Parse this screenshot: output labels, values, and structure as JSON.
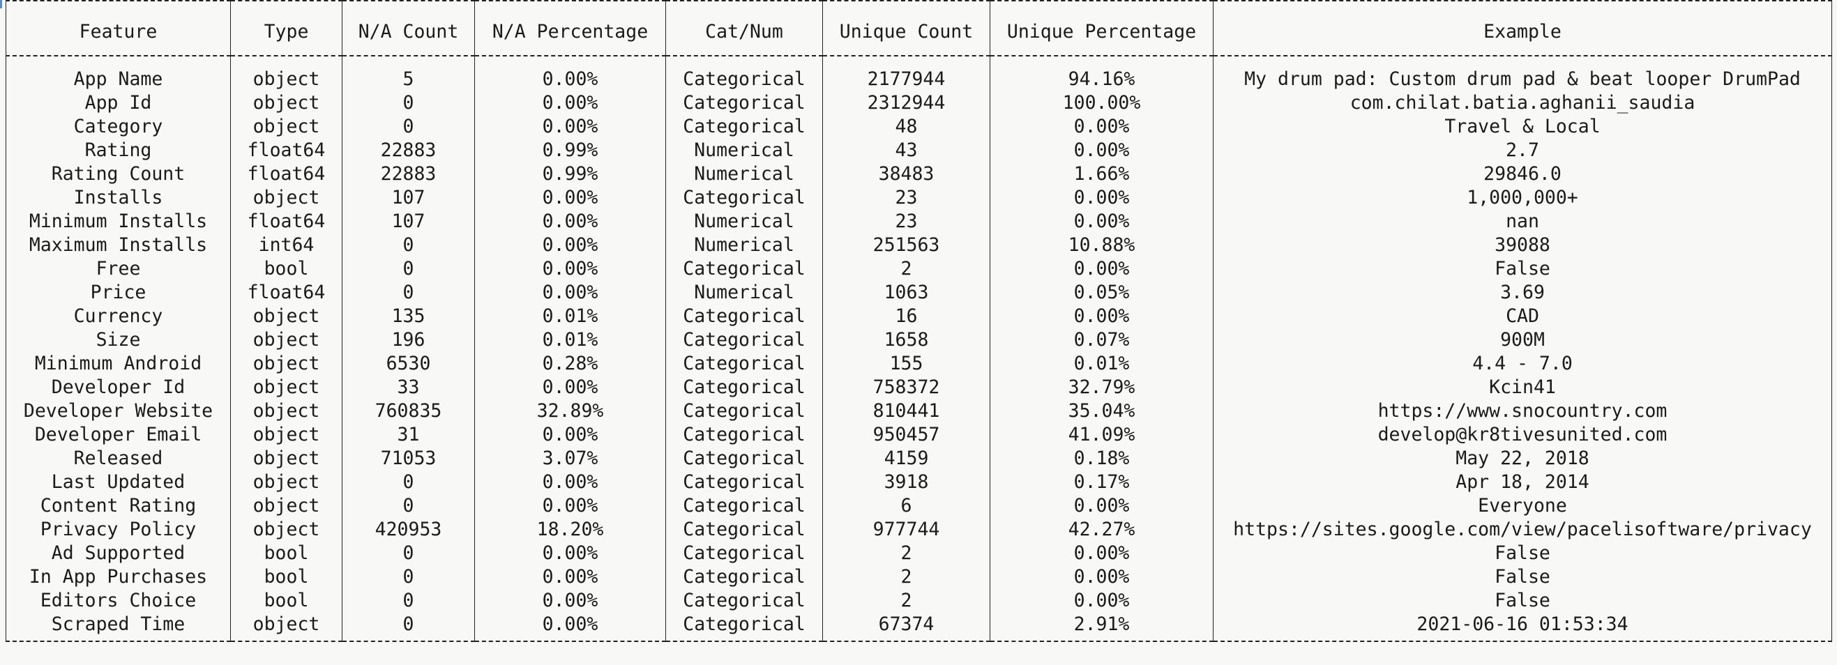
{
  "table": {
    "headers": [
      "Feature",
      "Type",
      "N/A Count",
      "N/A Percentage",
      "Cat/Num",
      "Unique Count",
      "Unique Percentage",
      "Example"
    ],
    "rows": [
      [
        "App Name",
        "object",
        "5",
        "0.00%",
        "Categorical",
        "2177944",
        "94.16%",
        "My drum pad: Custom drum pad & beat looper DrumPad"
      ],
      [
        "App Id",
        "object",
        "0",
        "0.00%",
        "Categorical",
        "2312944",
        "100.00%",
        "com.chilat.batia.aghanii_saudia"
      ],
      [
        "Category",
        "object",
        "0",
        "0.00%",
        "Categorical",
        "48",
        "0.00%",
        "Travel & Local"
      ],
      [
        "Rating",
        "float64",
        "22883",
        "0.99%",
        "Numerical",
        "43",
        "0.00%",
        "2.7"
      ],
      [
        "Rating Count",
        "float64",
        "22883",
        "0.99%",
        "Numerical",
        "38483",
        "1.66%",
        "29846.0"
      ],
      [
        "Installs",
        "object",
        "107",
        "0.00%",
        "Categorical",
        "23",
        "0.00%",
        "1,000,000+"
      ],
      [
        "Minimum Installs",
        "float64",
        "107",
        "0.00%",
        "Numerical",
        "23",
        "0.00%",
        "nan"
      ],
      [
        "Maximum Installs",
        "int64",
        "0",
        "0.00%",
        "Numerical",
        "251563",
        "10.88%",
        "39088"
      ],
      [
        "Free",
        "bool",
        "0",
        "0.00%",
        "Categorical",
        "2",
        "0.00%",
        "False"
      ],
      [
        "Price",
        "float64",
        "0",
        "0.00%",
        "Numerical",
        "1063",
        "0.05%",
        "3.69"
      ],
      [
        "Currency",
        "object",
        "135",
        "0.01%",
        "Categorical",
        "16",
        "0.00%",
        "CAD"
      ],
      [
        "Size",
        "object",
        "196",
        "0.01%",
        "Categorical",
        "1658",
        "0.07%",
        "900M"
      ],
      [
        "Minimum Android",
        "object",
        "6530",
        "0.28%",
        "Categorical",
        "155",
        "0.01%",
        "4.4 - 7.0"
      ],
      [
        "Developer Id",
        "object",
        "33",
        "0.00%",
        "Categorical",
        "758372",
        "32.79%",
        "Kcin41"
      ],
      [
        "Developer Website",
        "object",
        "760835",
        "32.89%",
        "Categorical",
        "810441",
        "35.04%",
        "https://www.snocountry.com"
      ],
      [
        "Developer Email",
        "object",
        "31",
        "0.00%",
        "Categorical",
        "950457",
        "41.09%",
        "develop@kr8tivesunited.com"
      ],
      [
        "Released",
        "object",
        "71053",
        "3.07%",
        "Categorical",
        "4159",
        "0.18%",
        "May 22, 2018"
      ],
      [
        "Last Updated",
        "object",
        "0",
        "0.00%",
        "Categorical",
        "3918",
        "0.17%",
        "Apr 18, 2014"
      ],
      [
        "Content Rating",
        "object",
        "0",
        "0.00%",
        "Categorical",
        "6",
        "0.00%",
        "Everyone"
      ],
      [
        "Privacy Policy",
        "object",
        "420953",
        "18.20%",
        "Categorical",
        "977744",
        "42.27%",
        "https://sites.google.com/view/pacelisoftware/privacy"
      ],
      [
        "Ad Supported",
        "bool",
        "0",
        "0.00%",
        "Categorical",
        "2",
        "0.00%",
        "False"
      ],
      [
        "In App Purchases",
        "bool",
        "0",
        "0.00%",
        "Categorical",
        "2",
        "0.00%",
        "False"
      ],
      [
        "Editors Choice",
        "bool",
        "0",
        "0.00%",
        "Categorical",
        "2",
        "0.00%",
        "False"
      ],
      [
        "Scraped Time",
        "object",
        "0",
        "0.00%",
        "Categorical",
        "67374",
        "2.91%",
        "2021-06-16 01:53:34"
      ]
    ]
  }
}
